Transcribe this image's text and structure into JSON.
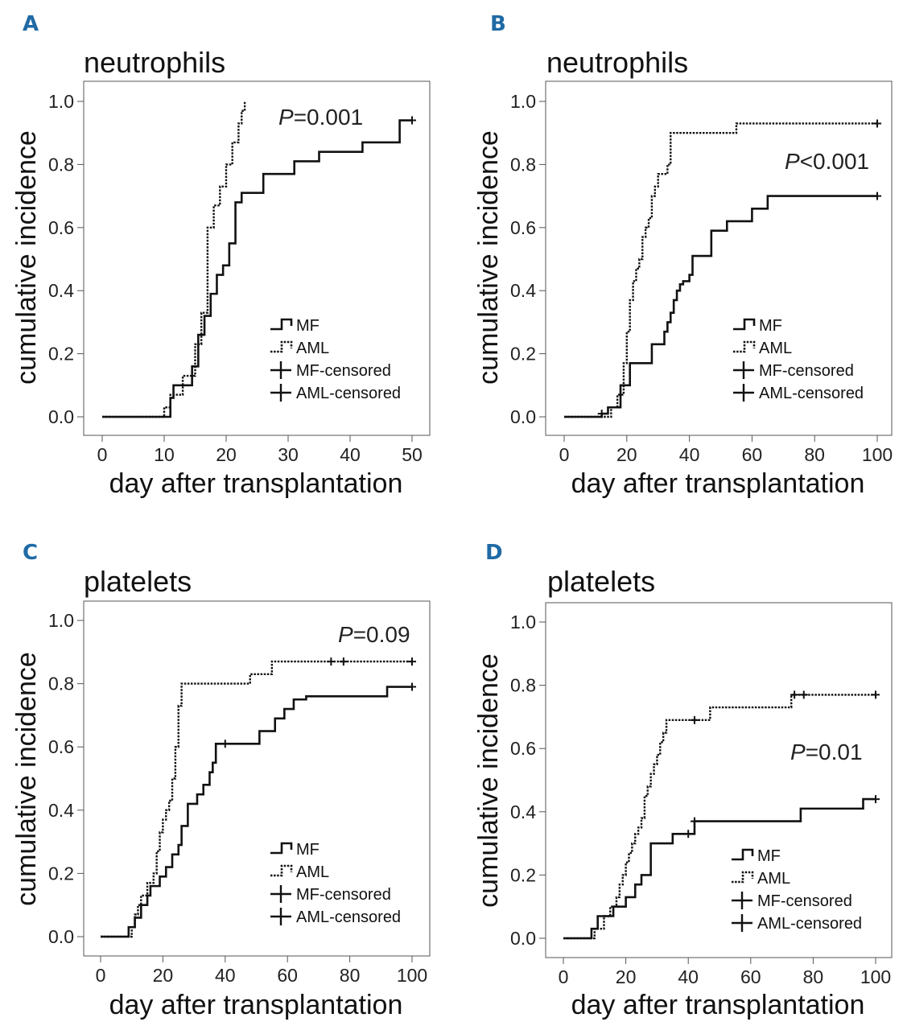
{
  "colors": {
    "panel_letter": "#1f6aa5",
    "line": "#111111",
    "frame": "#555555"
  },
  "legend": {
    "mf": "MF",
    "aml": "AML",
    "mf_censored": "MF-censored",
    "aml_censored": "AML-censored"
  },
  "chart_data": [
    {
      "panel": "A",
      "type": "line",
      "title": "neutrophils",
      "xlabel": "day after transplantation",
      "ylabel": "cumulative incidence",
      "xlim": [
        0,
        50
      ],
      "ylim": [
        0,
        1
      ],
      "xticks": [
        "0",
        "10",
        "20",
        "30",
        "40",
        "50"
      ],
      "yticks": [
        "0.0",
        "0.2",
        "0.4",
        "0.6",
        "0.8",
        "1.0"
      ],
      "p_prefix": "P",
      "p_rest": "=0.001",
      "series": [
        {
          "name": "MF",
          "style": "solid",
          "x": [
            0,
            11,
            11.5,
            12.5,
            14.5,
            15.5,
            16.5,
            17.5,
            18.5,
            19.5,
            20.5,
            21.5,
            22.5,
            23.5,
            26,
            31,
            35,
            42,
            48,
            50
          ],
          "y": [
            0,
            0.06,
            0.1,
            0.1,
            0.16,
            0.26,
            0.32,
            0.39,
            0.45,
            0.48,
            0.55,
            0.68,
            0.71,
            0.71,
            0.77,
            0.81,
            0.84,
            0.87,
            0.94,
            0.94
          ],
          "censored_x": [
            50
          ]
        },
        {
          "name": "AML",
          "style": "dotted",
          "x": [
            0,
            10,
            11,
            13,
            15,
            16,
            17,
            18,
            19,
            20,
            21,
            22,
            22.5,
            23
          ],
          "y": [
            0,
            0.03,
            0.07,
            0.13,
            0.23,
            0.33,
            0.6,
            0.67,
            0.73,
            0.8,
            0.87,
            0.93,
            0.97,
            1.0
          ],
          "censored_x": []
        }
      ]
    },
    {
      "panel": "B",
      "type": "line",
      "title": "neutrophils",
      "xlabel": "day after transplantation",
      "ylabel": "cumulative incidence",
      "xlim": [
        0,
        100
      ],
      "ylim": [
        0,
        1
      ],
      "xticks": [
        "0",
        "20",
        "40",
        "60",
        "80",
        "100"
      ],
      "yticks": [
        "0.0",
        "0.2",
        "0.4",
        "0.6",
        "0.8",
        "1.0"
      ],
      "p_prefix": "P",
      "p_rest": "<0.001",
      "series": [
        {
          "name": "MF",
          "style": "solid",
          "x": [
            0,
            12,
            14,
            18,
            21,
            28,
            32,
            33,
            34,
            35,
            36,
            37,
            38,
            40,
            41,
            42,
            47,
            52,
            60,
            65,
            100
          ],
          "y": [
            0,
            0.01,
            0.03,
            0.1,
            0.17,
            0.23,
            0.27,
            0.3,
            0.33,
            0.37,
            0.4,
            0.42,
            0.43,
            0.45,
            0.51,
            0.51,
            0.59,
            0.62,
            0.66,
            0.7,
            0.7
          ],
          "censored_x": [
            12,
            100
          ]
        },
        {
          "name": "AML",
          "style": "dotted",
          "x": [
            0,
            15,
            17,
            19,
            20,
            21,
            22,
            23,
            24,
            25,
            26,
            27,
            28,
            29,
            30,
            31,
            33,
            34,
            55,
            100
          ],
          "y": [
            0,
            0.03,
            0.07,
            0.17,
            0.27,
            0.37,
            0.43,
            0.47,
            0.5,
            0.57,
            0.6,
            0.63,
            0.7,
            0.73,
            0.77,
            0.77,
            0.8,
            0.9,
            0.93,
            0.93
          ],
          "censored_x": [
            100
          ]
        }
      ]
    },
    {
      "panel": "C",
      "type": "line",
      "title": "platelets",
      "xlabel": "day after transplantation",
      "ylabel": "cumulative incidence",
      "xlim": [
        0,
        100
      ],
      "ylim": [
        0,
        1
      ],
      "xticks": [
        "0",
        "20",
        "40",
        "60",
        "80",
        "100"
      ],
      "yticks": [
        "0.0",
        "0.2",
        "0.4",
        "0.6",
        "0.8",
        "1.0"
      ],
      "p_prefix": "P",
      "p_rest": "=0.09",
      "series": [
        {
          "name": "MF",
          "style": "solid",
          "x": [
            0,
            9,
            11,
            13,
            15,
            16,
            19,
            21,
            23,
            25,
            26,
            28,
            31,
            33,
            35,
            36,
            37,
            40,
            51,
            54,
            56,
            59,
            62,
            66,
            92,
            100
          ],
          "y": [
            0,
            0.03,
            0.06,
            0.1,
            0.13,
            0.16,
            0.19,
            0.22,
            0.26,
            0.29,
            0.35,
            0.42,
            0.45,
            0.48,
            0.52,
            0.55,
            0.61,
            0.61,
            0.65,
            0.65,
            0.69,
            0.72,
            0.75,
            0.76,
            0.79,
            0.79
          ],
          "censored_x": [
            40,
            100
          ]
        },
        {
          "name": "AML",
          "style": "dotted",
          "x": [
            0,
            10,
            11,
            12,
            13,
            15,
            17,
            18,
            19,
            20,
            21,
            22,
            23,
            24,
            25,
            26,
            48,
            50,
            55,
            100
          ],
          "y": [
            0,
            0.03,
            0.07,
            0.1,
            0.13,
            0.17,
            0.2,
            0.27,
            0.33,
            0.37,
            0.4,
            0.43,
            0.5,
            0.6,
            0.73,
            0.8,
            0.83,
            0.83,
            0.87,
            0.87
          ],
          "censored_x": [
            74,
            78,
            100
          ]
        }
      ]
    },
    {
      "panel": "D",
      "type": "line",
      "title": "platelets",
      "xlabel": "day after transplantation",
      "ylabel": "cumulative incidence",
      "xlim": [
        0,
        100
      ],
      "ylim": [
        0,
        1
      ],
      "xticks": [
        "0",
        "20",
        "40",
        "60",
        "80",
        "100"
      ],
      "yticks": [
        "0.0",
        "0.2",
        "0.4",
        "0.6",
        "0.8",
        "1.0"
      ],
      "p_prefix": "P",
      "p_rest": "=0.01",
      "series": [
        {
          "name": "MF",
          "style": "solid",
          "x": [
            0,
            9,
            11,
            14,
            16,
            20,
            23,
            25,
            28,
            35,
            40,
            42,
            76,
            96,
            100
          ],
          "y": [
            0,
            0.03,
            0.07,
            0.07,
            0.1,
            0.13,
            0.17,
            0.2,
            0.3,
            0.33,
            0.33,
            0.37,
            0.41,
            0.44,
            0.44
          ],
          "censored_x": [
            40,
            42,
            100
          ]
        },
        {
          "name": "AML",
          "style": "dotted",
          "x": [
            0,
            10,
            13,
            15,
            17,
            18,
            19,
            20,
            21,
            22,
            23,
            24,
            25,
            26,
            27,
            28,
            29,
            30,
            31,
            32,
            33,
            45,
            47,
            72,
            73,
            100
          ],
          "y": [
            0,
            0.03,
            0.07,
            0.1,
            0.13,
            0.17,
            0.2,
            0.24,
            0.27,
            0.3,
            0.33,
            0.35,
            0.38,
            0.45,
            0.48,
            0.52,
            0.55,
            0.58,
            0.62,
            0.65,
            0.69,
            0.69,
            0.73,
            0.73,
            0.77,
            0.77
          ],
          "censored_x": [
            42,
            74,
            77,
            100
          ]
        }
      ]
    }
  ]
}
